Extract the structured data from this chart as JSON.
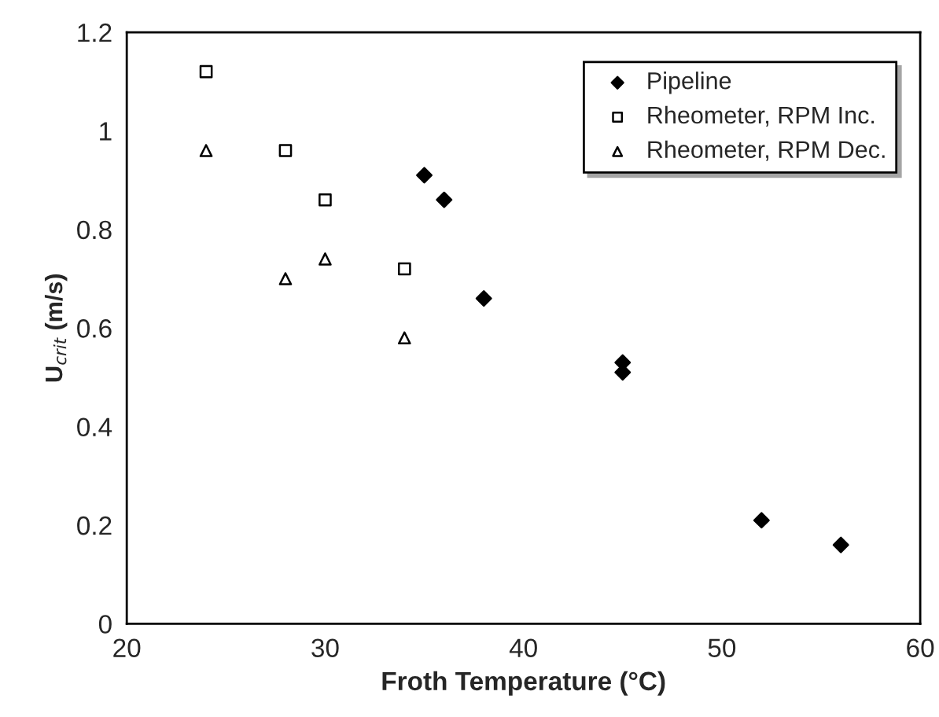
{
  "chart_data": {
    "type": "scatter",
    "xlabel": "Froth Temperature (°C)",
    "ylabel": "U$_{crit}$ (m/s)",
    "xlim": [
      20,
      60
    ],
    "xticks": [
      20,
      30,
      40,
      50,
      60
    ],
    "ylim": [
      0,
      1.2
    ],
    "yticks": [
      0,
      0.2,
      0.4,
      0.6,
      0.8,
      1,
      1.2
    ],
    "grid": false,
    "legend": "top right",
    "series": [
      {
        "name": "Pipeline",
        "color": "#000000",
        "marker": "diamond",
        "x": [
          35,
          36,
          38,
          45,
          45,
          52,
          56
        ],
        "values": [
          0.91,
          0.86,
          0.66,
          0.53,
          0.51,
          0.21,
          0.16
        ]
      },
      {
        "name": "Rheometer, RPM Inc.",
        "color": "#000000",
        "marker": "square",
        "x": [
          24,
          28,
          30,
          34
        ],
        "values": [
          1.12,
          0.96,
          0.86,
          0.72
        ]
      },
      {
        "name": "Rheometer, RPM Dec.",
        "color": "#000000",
        "marker": "triangle",
        "x": [
          24,
          28,
          30,
          34
        ],
        "values": [
          0.96,
          0.7,
          0.74,
          0.58
        ]
      }
    ]
  }
}
